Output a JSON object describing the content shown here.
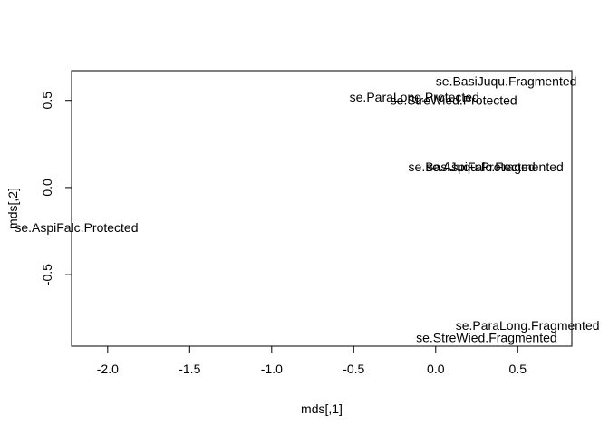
{
  "chart_data": {
    "type": "scatter",
    "title": "",
    "xlabel": "mds[,1]",
    "ylabel": "mds[,2]",
    "xlim": [
      -2.22,
      0.83
    ],
    "ylim": [
      -0.91,
      0.67
    ],
    "x_ticks": [
      -2.0,
      -1.5,
      -1.0,
      -0.5,
      0.0,
      0.5
    ],
    "x_tick_labels": [
      "-2.0",
      "-1.5",
      "-1.0",
      "-0.5",
      "0.0",
      "0.5"
    ],
    "y_ticks": [
      -0.5,
      0.0,
      0.5
    ],
    "y_tick_labels": [
      "-0.5",
      "0.0",
      "0.5"
    ],
    "grid": false,
    "points": [
      {
        "label": "se.BasiJuqu.Fragmented",
        "x": 0.43,
        "y": 0.61
      },
      {
        "label": "se.ParaLong.Protected",
        "x": -0.13,
        "y": 0.52
      },
      {
        "label": "se.StreWied.Protected",
        "x": 0.11,
        "y": 0.5
      },
      {
        "label": "se.BasiJuqu.Protected",
        "x": 0.22,
        "y": 0.12
      },
      {
        "label": "se.AspiFalc.Fragmented",
        "x": 0.36,
        "y": 0.12
      },
      {
        "label": "se.AspiFalc.Protected",
        "x": -2.19,
        "y": -0.23
      },
      {
        "label": "se.ParaLong.Fragmented",
        "x": 0.56,
        "y": -0.79
      },
      {
        "label": "se.StreWied.Fragmented",
        "x": 0.31,
        "y": -0.86
      }
    ]
  }
}
